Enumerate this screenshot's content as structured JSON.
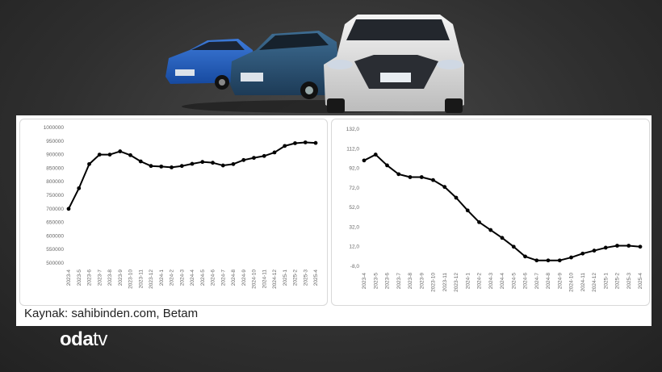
{
  "source_text": "Kaynak: sahibinden.com, Betam",
  "logo": {
    "bold": "oda",
    "light": "tv"
  },
  "chart_data": [
    {
      "type": "line",
      "x": [
        "2023-4",
        "2023-5",
        "2023-6",
        "2023-7",
        "2023-8",
        "2023-9",
        "2023-10",
        "2023-11",
        "2023-12",
        "2024-1",
        "2024-2",
        "2024-3",
        "2024-4",
        "2024-5",
        "2024-6",
        "2024-7",
        "2024-8",
        "2024-9",
        "2024-10",
        "2024-11",
        "2024-12",
        "2025-1",
        "2025-2",
        "2025-3",
        "2025-4"
      ],
      "series": [
        {
          "values": [
            700000,
            776000,
            865000,
            900000,
            900000,
            912000,
            898000,
            875000,
            858000,
            856000,
            853000,
            858000,
            866000,
            873000,
            870000,
            860000,
            865000,
            880000,
            888000,
            895000,
            908000,
            932000,
            942000,
            945000,
            943000
          ]
        }
      ],
      "y_ticks": [
        "500000",
        "550000",
        "600000",
        "650000",
        "700000",
        "750000",
        "800000",
        "850000",
        "900000",
        "950000",
        "1000000"
      ],
      "ylim": [
        500000,
        1000000
      ],
      "color": "#000000"
    },
    {
      "type": "line",
      "x": [
        "2023-4",
        "2023-5",
        "2023-6",
        "2023-7",
        "2023-8",
        "2023-9",
        "2023-10",
        "2023-11",
        "2023-12",
        "2024-1",
        "2024-2",
        "2024-3",
        "2024-4",
        "2024-5",
        "2024-6",
        "2024-7",
        "2024-8",
        "2024-9",
        "2024-10",
        "2024-11",
        "2024-12",
        "2025-1",
        "2025-2",
        "2025-3",
        "2025-4"
      ],
      "series": [
        {
          "values": [
            100,
            106,
            95,
            86,
            83,
            83,
            80,
            73,
            62,
            49,
            37,
            29,
            21,
            12,
            2,
            -2,
            -2,
            -2,
            1,
            5,
            8,
            11,
            13,
            13,
            12
          ]
        }
      ],
      "y_ticks": [
        "-8,0",
        "12,0",
        "32,0",
        "52,0",
        "72,0",
        "92,0",
        "112,0",
        "132,0"
      ],
      "ylim": [
        -8,
        132
      ],
      "color": "#000000"
    }
  ]
}
